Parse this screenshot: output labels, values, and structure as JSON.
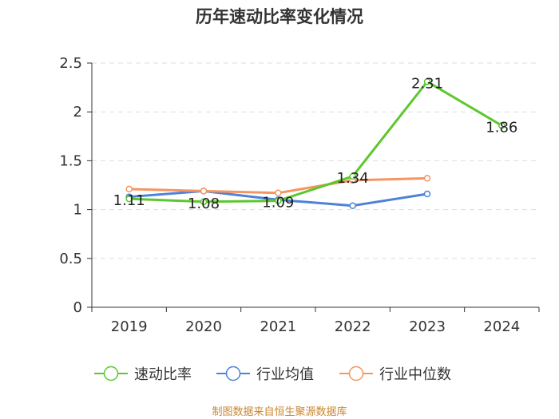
{
  "chart_data": {
    "type": "line",
    "title": "历年速动比率变化情况",
    "categories": [
      "2019",
      "2020",
      "2021",
      "2022",
      "2023",
      "2024"
    ],
    "ylim": [
      0,
      2.5
    ],
    "yticks": [
      "0",
      "0.5",
      "1",
      "1.5",
      "2",
      "2.5"
    ],
    "ytick_values": [
      0,
      0.5,
      1,
      1.5,
      2,
      2.5
    ],
    "grid": true,
    "legend_position": "bottom",
    "series": [
      {
        "name": "速动比率",
        "color": "#5cc82e",
        "values": [
          1.11,
          1.08,
          1.09,
          1.34,
          2.31,
          1.86
        ],
        "labels": [
          "1.11",
          "1.08",
          "1.09",
          "1.34",
          "2.31",
          "1.86"
        ]
      },
      {
        "name": "行业均值",
        "color": "#4e82d8",
        "values": [
          1.13,
          1.19,
          1.1,
          1.04,
          1.16,
          null
        ]
      },
      {
        "name": "行业中位数",
        "color": "#f59562",
        "values": [
          1.21,
          1.19,
          1.17,
          1.3,
          1.32,
          null
        ]
      }
    ]
  },
  "footer": {
    "source": "制图数据来自恒生聚源数据库"
  }
}
